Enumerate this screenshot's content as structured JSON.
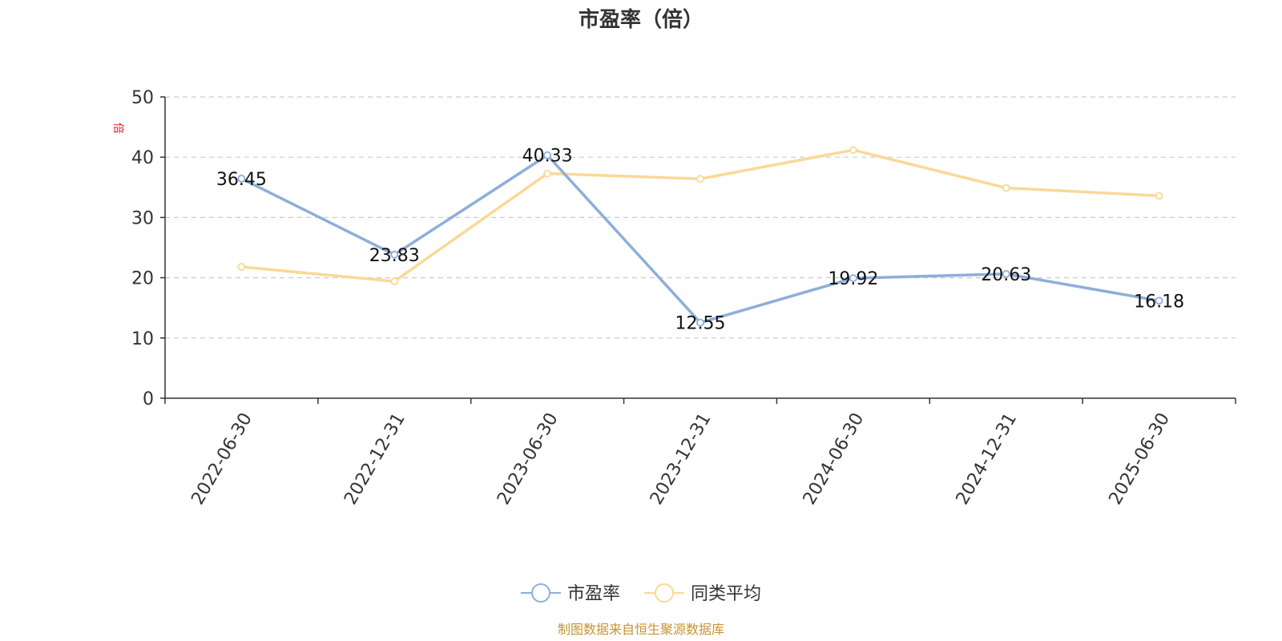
{
  "chart_data": {
    "type": "line",
    "title": "市盈率（倍）",
    "ylabel": "倍",
    "xlabel": "",
    "categories": [
      "2022-06-30",
      "2022-12-31",
      "2023-06-30",
      "2023-12-31",
      "2024-06-30",
      "2024-12-31",
      "2025-06-30"
    ],
    "series": [
      {
        "name": "市盈率",
        "color": "#8eaed9",
        "values": [
          36.45,
          23.83,
          40.33,
          12.55,
          19.92,
          20.63,
          16.18
        ],
        "labels": [
          "36.45",
          "23.83",
          "40.33",
          "12.55",
          "19.92",
          "20.63",
          "16.18"
        ]
      },
      {
        "name": "同类平均",
        "color": "#fad897",
        "values": [
          21.8,
          19.4,
          37.3,
          36.4,
          41.2,
          34.9,
          33.6
        ]
      }
    ],
    "ylim": [
      0,
      50
    ],
    "yticks": [
      "0",
      "10",
      "20",
      "30",
      "40",
      "50"
    ],
    "grid": true,
    "legend_position": "bottom"
  },
  "source": {
    "text": "制图数据来自恒生聚源数据库",
    "color": "#c9932f"
  },
  "unit_color": "#e02020"
}
